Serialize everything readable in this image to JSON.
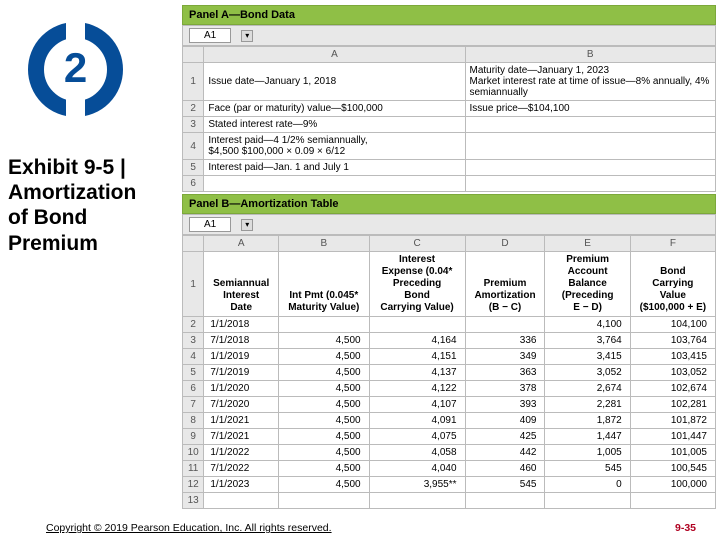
{
  "badge": {
    "number": "2"
  },
  "exhibit": {
    "title_l1": "Exhibit 9-5 |",
    "title_l2": "Amortization",
    "title_l3": "of Bond",
    "title_l4": "Premium"
  },
  "panelA": {
    "header": "Panel A—Bond Data",
    "cellref": "A1",
    "cols": [
      "A",
      "B"
    ],
    "rows": [
      {
        "n": "1",
        "a": "Issue date—January 1, 2018",
        "b": "Maturity date—January 1, 2023\nMarket interest rate at time of issue—8% annually, 4% semiannually"
      },
      {
        "n": "2",
        "a": "Face (par or maturity) value—$100,000",
        "b": "Issue price—$104,100"
      },
      {
        "n": "3",
        "a": "Stated interest rate—9%",
        "b": ""
      },
      {
        "n": "4",
        "a": "Interest paid—4 1/2% semiannually,\n$4,500   $100,000 × 0.09 × 6/12",
        "b": ""
      },
      {
        "n": "5",
        "a": "Interest paid—Jan. 1 and July 1",
        "b": ""
      },
      {
        "n": "6",
        "a": "",
        "b": ""
      }
    ]
  },
  "panelB": {
    "header": "Panel B—Amortization Table",
    "cellref": "A1",
    "cols": [
      "A",
      "B",
      "C",
      "D",
      "E",
      "F"
    ],
    "headers": {
      "a": "Semiannual\nInterest\nDate",
      "b": "Int Pmt (0.045*\nMaturity Value)",
      "c": "Interest\nExpense (0.04*\nPreceding\nBond\nCarrying Value)",
      "d": "Premium\nAmortization\n(B − C)",
      "e": "Premium\nAccount\nBalance\n(Preceding\nE − D)",
      "f": "Bond\nCarrying\nValue\n($100,000 + E)"
    },
    "rows": [
      {
        "n": "2",
        "a": "1/1/2018",
        "b": "",
        "c": "",
        "d": "",
        "e": "4,100",
        "f": "104,100"
      },
      {
        "n": "3",
        "a": "7/1/2018",
        "b": "4,500",
        "c": "4,164",
        "d": "336",
        "e": "3,764",
        "f": "103,764"
      },
      {
        "n": "4",
        "a": "1/1/2019",
        "b": "4,500",
        "c": "4,151",
        "d": "349",
        "e": "3,415",
        "f": "103,415"
      },
      {
        "n": "5",
        "a": "7/1/2019",
        "b": "4,500",
        "c": "4,137",
        "d": "363",
        "e": "3,052",
        "f": "103,052"
      },
      {
        "n": "6",
        "a": "1/1/2020",
        "b": "4,500",
        "c": "4,122",
        "d": "378",
        "e": "2,674",
        "f": "102,674"
      },
      {
        "n": "7",
        "a": "7/1/2020",
        "b": "4,500",
        "c": "4,107",
        "d": "393",
        "e": "2,281",
        "f": "102,281"
      },
      {
        "n": "8",
        "a": "1/1/2021",
        "b": "4,500",
        "c": "4,091",
        "d": "409",
        "e": "1,872",
        "f": "101,872"
      },
      {
        "n": "9",
        "a": "7/1/2021",
        "b": "4,500",
        "c": "4,075",
        "d": "425",
        "e": "1,447",
        "f": "101,447"
      },
      {
        "n": "10",
        "a": "1/1/2022",
        "b": "4,500",
        "c": "4,058",
        "d": "442",
        "e": "1,005",
        "f": "101,005"
      },
      {
        "n": "11",
        "a": "7/1/2022",
        "b": "4,500",
        "c": "4,040",
        "d": "460",
        "e": "545",
        "f": "100,545"
      },
      {
        "n": "12",
        "a": "1/1/2023",
        "b": "4,500",
        "c": "3,955**",
        "d": "545",
        "e": "0",
        "f": "100,000"
      },
      {
        "n": "13",
        "a": "",
        "b": "",
        "c": "",
        "d": "",
        "e": "",
        "f": ""
      }
    ]
  },
  "footer": {
    "copyright": "Copyright © 2019 Pearson Education, Inc. All rights reserved.",
    "pagenum": "9-35"
  },
  "colors": {
    "brand_blue": "#064d98",
    "panel_green": "#8fbf46",
    "wrap_green": "#b7d77e",
    "row_gray": "#e8e8e8",
    "border_gray": "#bbbbbb",
    "red": "#b00020"
  }
}
